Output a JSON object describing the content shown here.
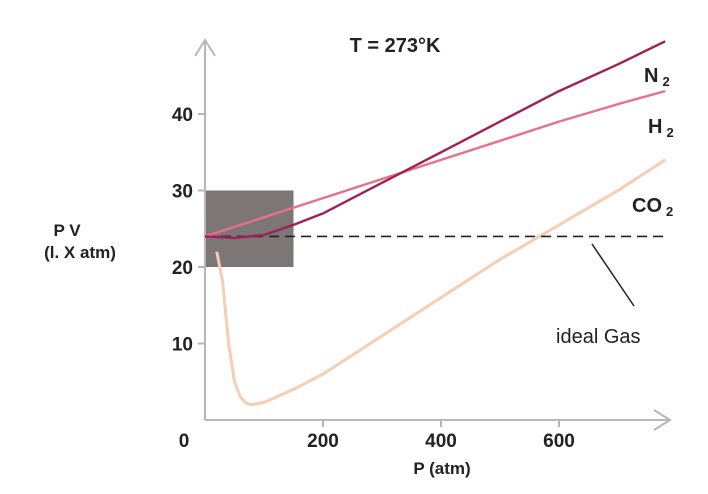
{
  "chart_data": {
    "type": "line",
    "title": "T = 273°K",
    "xlabel": "P (atm)",
    "ylabel_line1": "P V",
    "ylabel_line2": "(l. X atm)",
    "xlim": [
      0,
      780
    ],
    "ylim": [
      0,
      50
    ],
    "xticks": [
      0,
      200,
      400,
      600
    ],
    "yticks": [
      10,
      20,
      30,
      40
    ],
    "highlight_region": {
      "x": [
        0,
        150
      ],
      "y": [
        20,
        30
      ]
    },
    "series": [
      {
        "name": "N2",
        "label_main": "N",
        "label_sub": "2",
        "color": "#a0205a",
        "x": [
          0,
          50,
          100,
          150,
          200,
          300,
          400,
          500,
          600,
          700,
          780
        ],
        "y": [
          24,
          23.8,
          24.2,
          25.5,
          27,
          31,
          35,
          39,
          43,
          46.5,
          49.5
        ]
      },
      {
        "name": "H2",
        "label_main": "H",
        "label_sub": "2",
        "color": "#e8708a",
        "x": [
          0,
          100,
          200,
          300,
          400,
          500,
          600,
          700,
          780
        ],
        "y": [
          24,
          26.5,
          29,
          31.5,
          34,
          36.5,
          39,
          41.3,
          43
        ]
      },
      {
        "name": "CO2",
        "label_main": "CO",
        "label_sub": "2",
        "color": "#f6cdb5",
        "x": [
          20,
          30,
          40,
          50,
          60,
          70,
          80,
          100,
          150,
          200,
          300,
          400,
          500,
          600,
          700,
          780
        ],
        "y": [
          22,
          18,
          10,
          5,
          3,
          2.2,
          2,
          2.3,
          4,
          6,
          11,
          16,
          21,
          25.5,
          30,
          34
        ]
      },
      {
        "name": "ideal Gas",
        "label_main": "ideal  Gas",
        "label_sub": "",
        "color": "#222222",
        "dashed": true,
        "x": [
          0,
          780
        ],
        "y": [
          24,
          24
        ]
      }
    ]
  }
}
